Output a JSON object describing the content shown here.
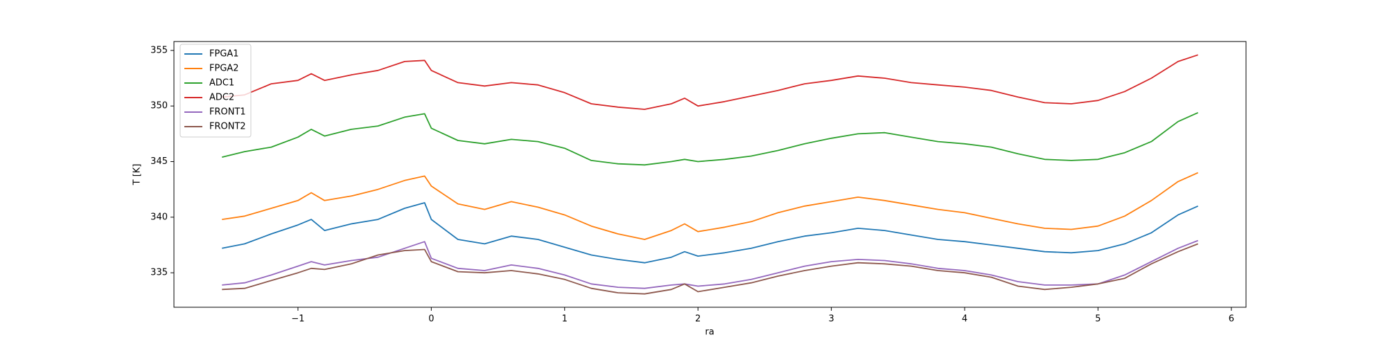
{
  "chart_data": {
    "type": "line",
    "x_label": "ra",
    "y_label": "T [K]",
    "x": [
      -1.57,
      -1.4,
      -1.2,
      -1.0,
      -0.9,
      -0.8,
      -0.6,
      -0.4,
      -0.2,
      -0.05,
      0,
      0.2,
      0.4,
      0.6,
      0.8,
      1.0,
      1.2,
      1.4,
      1.6,
      1.8,
      1.9,
      2.0,
      2.2,
      2.4,
      2.6,
      2.8,
      3.0,
      3.2,
      3.4,
      3.6,
      3.8,
      4.0,
      4.2,
      4.4,
      4.6,
      4.8,
      5.0,
      5.2,
      5.4,
      5.6,
      5.75
    ],
    "series": [
      {
        "name": "FPGA1",
        "color": "#1f77b4",
        "values": [
          337.2,
          337.6,
          338.5,
          339.3,
          339.8,
          338.8,
          339.4,
          339.8,
          340.8,
          341.3,
          339.8,
          338.0,
          337.6,
          338.3,
          338.0,
          337.3,
          336.6,
          336.2,
          335.9,
          336.4,
          336.9,
          336.5,
          336.8,
          337.2,
          337.8,
          338.3,
          338.6,
          339.0,
          338.8,
          338.4,
          338.0,
          337.8,
          337.5,
          337.2,
          336.9,
          336.8,
          337.0,
          337.6,
          338.6,
          340.2,
          341.0
        ]
      },
      {
        "name": "FPGA2",
        "color": "#ff7f0e",
        "values": [
          339.8,
          340.1,
          340.8,
          341.5,
          342.2,
          341.5,
          341.9,
          342.5,
          343.3,
          343.7,
          342.8,
          341.2,
          340.7,
          341.4,
          340.9,
          340.2,
          339.2,
          338.5,
          338.0,
          338.8,
          339.4,
          338.7,
          339.1,
          339.6,
          340.4,
          341.0,
          341.4,
          341.8,
          341.5,
          341.1,
          340.7,
          340.4,
          339.9,
          339.4,
          339.0,
          338.9,
          339.2,
          340.1,
          341.5,
          343.2,
          344.0
        ]
      },
      {
        "name": "ADC1",
        "color": "#2ca02c",
        "values": [
          345.4,
          345.9,
          346.3,
          347.2,
          347.9,
          347.3,
          347.9,
          348.2,
          349.0,
          349.3,
          348.0,
          346.9,
          346.6,
          347.0,
          346.8,
          346.2,
          345.1,
          344.8,
          344.7,
          345.0,
          345.2,
          345.0,
          345.2,
          345.5,
          346.0,
          346.6,
          347.1,
          347.5,
          347.6,
          347.2,
          346.8,
          346.6,
          346.3,
          345.7,
          345.2,
          345.1,
          345.2,
          345.8,
          346.8,
          348.6,
          349.4
        ]
      },
      {
        "name": "ADC2",
        "color": "#d62728",
        "values": [
          350.8,
          351.0,
          352.0,
          352.3,
          352.9,
          352.3,
          352.8,
          353.2,
          354.0,
          354.1,
          353.2,
          352.1,
          351.8,
          352.1,
          351.9,
          351.2,
          350.2,
          349.9,
          349.7,
          350.2,
          350.7,
          350.0,
          350.4,
          350.9,
          351.4,
          352.0,
          352.3,
          352.7,
          352.5,
          352.1,
          351.9,
          351.7,
          351.4,
          350.8,
          350.3,
          350.2,
          350.5,
          351.3,
          352.5,
          354.0,
          354.6
        ]
      },
      {
        "name": "FRONT1",
        "color": "#9467bd",
        "values": [
          333.9,
          334.1,
          334.8,
          335.6,
          336.0,
          335.7,
          336.1,
          336.4,
          337.2,
          337.8,
          336.3,
          335.4,
          335.2,
          335.7,
          335.4,
          334.8,
          334.0,
          333.7,
          333.6,
          333.9,
          334.0,
          333.8,
          334.0,
          334.4,
          335.0,
          335.6,
          336.0,
          336.2,
          336.1,
          335.8,
          335.4,
          335.2,
          334.8,
          334.2,
          333.9,
          333.9,
          334.0,
          334.8,
          336.0,
          337.2,
          337.9
        ]
      },
      {
        "name": "FRONT2",
        "color": "#8c564b",
        "values": [
          333.5,
          333.6,
          334.3,
          335.0,
          335.4,
          335.3,
          335.8,
          336.6,
          337.0,
          337.1,
          336.0,
          335.1,
          335.0,
          335.2,
          334.9,
          334.4,
          333.6,
          333.2,
          333.1,
          333.5,
          334.0,
          333.3,
          333.7,
          334.1,
          334.7,
          335.2,
          335.6,
          335.9,
          335.8,
          335.6,
          335.2,
          335.0,
          334.6,
          333.8,
          333.5,
          333.7,
          334.0,
          334.5,
          335.8,
          336.9,
          337.6
        ]
      }
    ],
    "xlim": [
      -1.93,
      6.11
    ],
    "ylim": [
      331.9,
      355.8
    ],
    "xticks": [
      {
        "value": -1,
        "label": "−1"
      },
      0,
      1,
      2,
      3,
      4,
      5,
      6
    ],
    "yticks": [
      335,
      340,
      345,
      350,
      355
    ],
    "legend": "upper left"
  }
}
